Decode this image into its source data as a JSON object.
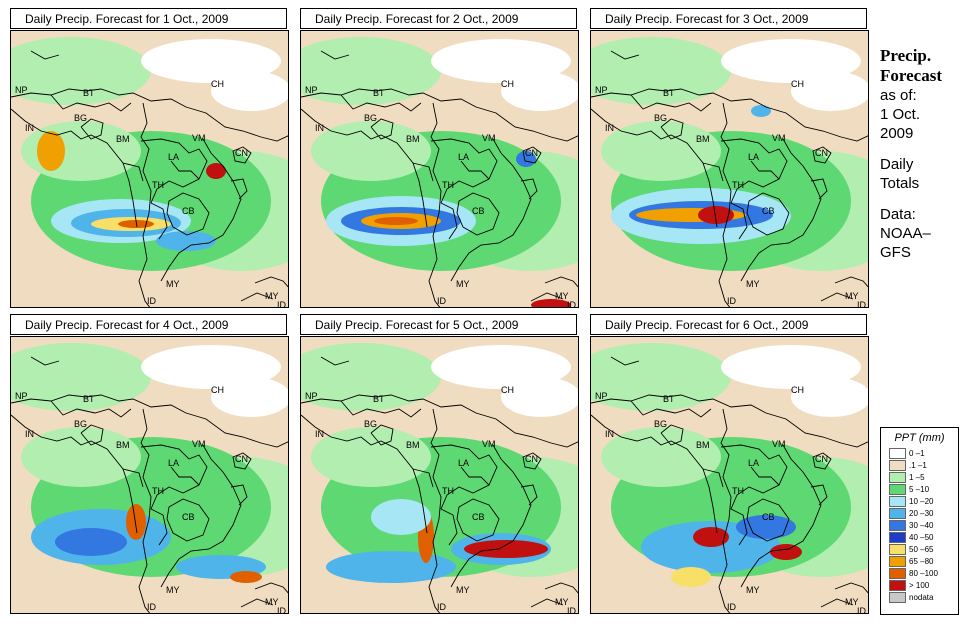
{
  "panels": [
    {
      "title": "Daily Precip. Forecast for  1 Oct., 2009"
    },
    {
      "title": "Daily Precip. Forecast for  2 Oct., 2009"
    },
    {
      "title": "Daily Precip. Forecast for  3 Oct., 2009"
    },
    {
      "title": "Daily Precip. Forecast for  4 Oct., 2009"
    },
    {
      "title": "Daily Precip. Forecast for  5 Oct., 2009"
    },
    {
      "title": "Daily Precip. Forecast for  6 Oct., 2009"
    }
  ],
  "map_labels": {
    "np": "NP",
    "bt": "BT",
    "bg": "BG",
    "in": "IN",
    "bm": "BM",
    "ch": "CH",
    "vm": "VM",
    "la": "LA",
    "th": "TH",
    "cb": "CB",
    "cn": "CN",
    "my1": "MY",
    "my2": "MY",
    "id1": "ID",
    "id2": "ID"
  },
  "side": {
    "heading_line1": "Precip.",
    "heading_line2": "Forecast",
    "asof": "as of:",
    "date_line1": "1 Oct.",
    "date_line2": "2009",
    "totals_line1": "Daily",
    "totals_line2": "Totals",
    "data_line1": "Data:",
    "data_line2": "NOAA–",
    "data_line3": "GFS"
  },
  "legend": {
    "title": "PPT (mm)",
    "items": [
      {
        "label": "0 –1",
        "color": "#ffffff"
      },
      {
        "label": ".1 –1",
        "color": "#f0dcc0"
      },
      {
        "label": "1 –5",
        "color": "#b2eeb0"
      },
      {
        "label": "5 –10",
        "color": "#5ed873"
      },
      {
        "label": "10 –20",
        "color": "#a6e6f5"
      },
      {
        "label": "20 –30",
        "color": "#4fb4ea"
      },
      {
        "label": "30 –40",
        "color": "#3278e0"
      },
      {
        "label": "40 –50",
        "color": "#1e3cc8"
      },
      {
        "label": "50 –65",
        "color": "#f8e068"
      },
      {
        "label": "65 –80",
        "color": "#f0a000"
      },
      {
        "label": "80 –100",
        "color": "#e06000"
      },
      {
        "label": "> 100",
        "color": "#c01010"
      },
      {
        "label": "nodata",
        "color": "#c8c8c8"
      }
    ]
  }
}
